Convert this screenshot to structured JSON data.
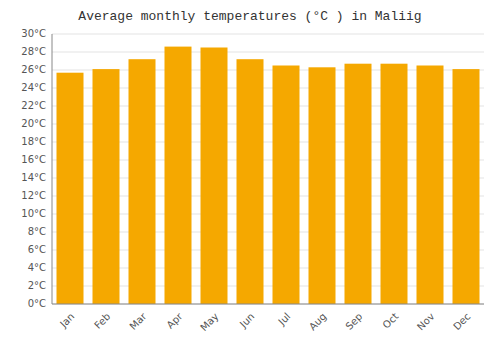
{
  "chart_data": {
    "type": "bar",
    "title": "Average monthly temperatures (°C ) in Maliig",
    "categories": [
      "Jan",
      "Feb",
      "Mar",
      "Apr",
      "May",
      "Jun",
      "Jul",
      "Aug",
      "Sep",
      "Oct",
      "Nov",
      "Dec"
    ],
    "values": [
      25.7,
      26.1,
      27.2,
      28.6,
      28.5,
      27.2,
      26.5,
      26.3,
      26.7,
      26.7,
      26.5,
      26.1
    ],
    "color": "#F5A800",
    "ylim": [
      0,
      30
    ],
    "yticks": [
      {
        "value": 0,
        "label": "0°C"
      },
      {
        "value": 2,
        "label": "2°C"
      },
      {
        "value": 4,
        "label": "4°C"
      },
      {
        "value": 6,
        "label": "6°C"
      },
      {
        "value": 8,
        "label": "8°C"
      },
      {
        "value": 10,
        "label": "10°C"
      },
      {
        "value": 12,
        "label": "12°C"
      },
      {
        "value": 14,
        "label": "14°C"
      },
      {
        "value": 16,
        "label": "16°C"
      },
      {
        "value": 18,
        "label": "18°C"
      },
      {
        "value": 20,
        "label": "20°C"
      },
      {
        "value": 22,
        "label": "22°C"
      },
      {
        "value": 24,
        "label": "24°C"
      },
      {
        "value": 26,
        "label": "26°C"
      },
      {
        "value": 28,
        "label": "28°C"
      },
      {
        "value": 30,
        "label": "30°C"
      }
    ],
    "grid": true
  }
}
